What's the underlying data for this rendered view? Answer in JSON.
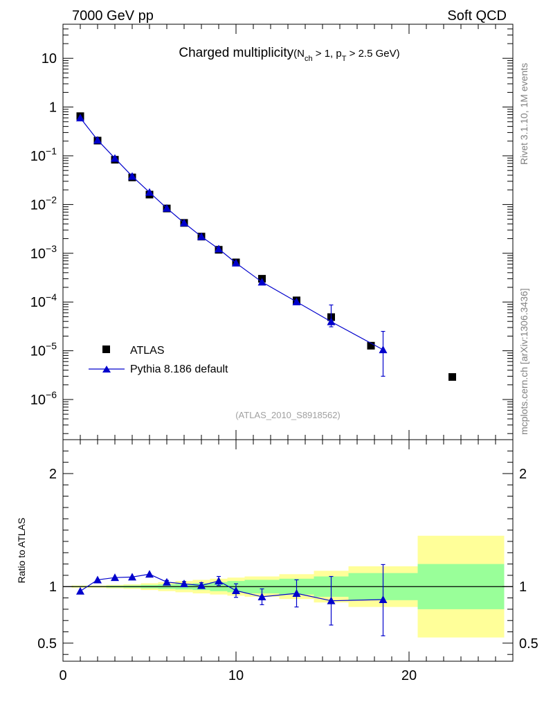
{
  "header": {
    "left": "7000 GeV pp",
    "right": "Soft QCD"
  },
  "side_labels": {
    "rivet": "Rivet 3.1.10,  1M events",
    "mcplots": "mcplots.cern.ch [arXiv:1306.3436]"
  },
  "chart_data": [
    {
      "type": "scatter",
      "panel": "main",
      "title": "Charged multiplicity",
      "title_cut": {
        "prefix": "(N",
        "sub1": "ch",
        "mid": " > 1, p",
        "sub2": "T",
        "suffix": " > 2.5 GeV)"
      },
      "analysis_label": "(ATLAS_2010_S8918562)",
      "yscale": "log",
      "xlim": [
        0,
        26
      ],
      "ylim": [
        1.5e-07,
        50
      ],
      "xticks": [
        0,
        10,
        20
      ],
      "xtick_labels": [
        "0",
        "10",
        "20"
      ],
      "ytick_labels": [
        {
          "value": 10,
          "base": "10",
          "exp": ""
        },
        {
          "value": 1,
          "base": "1",
          "exp": ""
        },
        {
          "value": 0.1,
          "base": "10",
          "exp": "−1"
        },
        {
          "value": 0.01,
          "base": "10",
          "exp": "−2"
        },
        {
          "value": 0.001,
          "base": "10",
          "exp": "−3"
        },
        {
          "value": 0.0001,
          "base": "10",
          "exp": "−4"
        },
        {
          "value": 1e-05,
          "base": "10",
          "exp": "−5"
        },
        {
          "value": 1e-06,
          "base": "10",
          "exp": "−6"
        }
      ],
      "legend": [
        {
          "label": "ATLAS",
          "marker": "square",
          "color": "#000000"
        },
        {
          "label": "Pythia 8.186 default",
          "marker": "triangle",
          "color": "#0000cc"
        }
      ],
      "series": [
        {
          "name": "ATLAS",
          "color": "#000000",
          "marker": "square",
          "x": [
            1,
            2,
            3,
            4,
            5,
            6,
            7,
            8,
            9,
            10,
            11.5,
            13.5,
            15.5,
            17.8,
            22.5
          ],
          "y": [
            0.65,
            0.205,
            0.083,
            0.036,
            0.016,
            0.0083,
            0.0042,
            0.0022,
            0.00118,
            0.00065,
            0.0003,
            0.000108,
            4.9e-05,
            1.27e-05,
            2.9e-06
          ]
        },
        {
          "name": "Pythia 8.186 default",
          "color": "#0000cc",
          "marker": "triangle",
          "x": [
            1,
            2,
            3,
            4,
            5,
            6,
            7,
            8,
            9,
            10,
            11.5,
            13.5,
            15.5,
            18.5
          ],
          "y": [
            0.6,
            0.21,
            0.089,
            0.038,
            0.0178,
            0.0084,
            0.0042,
            0.0022,
            0.00123,
            0.00063,
            0.000257,
            0.000101,
            3.95e-05,
            1.05e-05
          ],
          "err_low": [
            0,
            0,
            0,
            0,
            0,
            0,
            0,
            0,
            0,
            0,
            0,
            0,
            8.5e-06,
            7.5e-06
          ],
          "err_high": [
            0,
            0,
            0,
            0,
            0,
            0,
            0,
            0,
            0,
            0,
            0,
            0,
            4.75e-05,
            1.45e-05
          ]
        }
      ]
    },
    {
      "type": "line",
      "panel": "ratio",
      "ylabel": "Ratio to ATLAS",
      "xlim": [
        0,
        26
      ],
      "ylim": [
        0.34,
        2.3
      ],
      "xticks": [
        0,
        10,
        20
      ],
      "xtick_labels": [
        "0",
        "10",
        "20"
      ],
      "yticks": [
        0.5,
        1,
        2
      ],
      "ytick_labels": [
        "0.5",
        "1",
        "2"
      ],
      "bands": {
        "bins": [
          [
            0.5,
            1.5
          ],
          [
            1.5,
            2.5
          ],
          [
            2.5,
            3.5
          ],
          [
            3.5,
            4.5
          ],
          [
            4.5,
            5.5
          ],
          [
            5.5,
            6.5
          ],
          [
            6.5,
            7.5
          ],
          [
            7.5,
            8.5
          ],
          [
            8.5,
            9.5
          ],
          [
            9.5,
            10.5
          ],
          [
            10.5,
            12.5
          ],
          [
            12.5,
            14.5
          ],
          [
            14.5,
            16.5
          ],
          [
            16.5,
            20.5
          ],
          [
            20.5,
            25.5
          ]
        ],
        "stat_sys": [
          0.01,
          0.01,
          0.015,
          0.02,
          0.03,
          0.04,
          0.05,
          0.06,
          0.07,
          0.08,
          0.09,
          0.11,
          0.14,
          0.18,
          0.45
        ],
        "stat": [
          0.005,
          0.005,
          0.008,
          0.01,
          0.015,
          0.02,
          0.025,
          0.03,
          0.04,
          0.05,
          0.06,
          0.07,
          0.09,
          0.12,
          0.2
        ],
        "colors": {
          "stat_sys": "#ffff99",
          "stat": "#99ff99"
        }
      },
      "series": [
        {
          "name": "Pythia 8.186 default / ATLAS",
          "color": "#0000cc",
          "x": [
            1,
            2,
            3,
            4,
            5,
            6,
            7,
            8,
            9,
            10,
            11.5,
            13.5,
            15.5,
            18.5
          ],
          "y": [
            0.96,
            1.06,
            1.08,
            1.085,
            1.11,
            1.04,
            1.025,
            1.01,
            1.05,
            0.965,
            0.91,
            0.94,
            0.875,
            0.885
          ],
          "err_low": [
            0,
            0,
            0,
            0,
            0,
            0.015,
            0.02,
            0.025,
            0.04,
            0.06,
            0.07,
            0.12,
            0.215,
            0.32
          ],
          "err_high": [
            0,
            0,
            0,
            0,
            0,
            0.015,
            0.02,
            0.025,
            0.04,
            0.06,
            0.07,
            0.12,
            0.215,
            0.31
          ]
        }
      ]
    }
  ]
}
